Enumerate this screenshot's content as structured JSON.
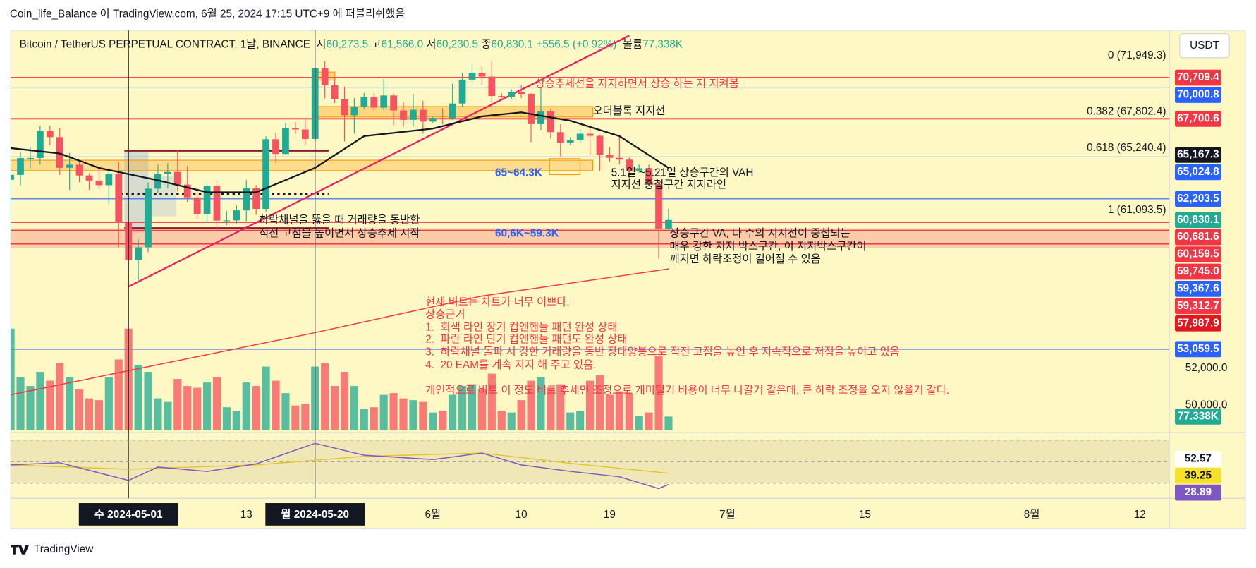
{
  "publisher": "Coin_life_Balance 이 TradingView.com, 6월 25, 2024 17:15 UTC+9 에 퍼블리쉬했음",
  "footer": "TradingView",
  "currency": "USDT",
  "chart_data": {
    "type": "candlestick",
    "title": "Bitcoin / TetherUS PERPETUAL CONTRACT, 1날, BINANCE",
    "legend_fields": [
      {
        "prefix": "시",
        "value": 60273.5,
        "label": "60,273.5"
      },
      {
        "prefix": "고",
        "value": 61566.0,
        "label": "61,566.0"
      },
      {
        "prefix": "저",
        "value": 60230.5,
        "label": "60,230.5"
      },
      {
        "prefix": "종",
        "value": 60830.1,
        "label": "60,830.1"
      }
    ],
    "change": {
      "value": 556.5,
      "label": "+556.5"
    },
    "change_pct": {
      "value": 0.92,
      "label": "(+0.92%)"
    },
    "volume_field": {
      "prefix": "볼륨",
      "value": 77338,
      "label": "77.338K"
    },
    "log_scale": true,
    "grid": false,
    "up_color": "#22ab94",
    "down_color": "#f7525f",
    "xlim": [
      "2024-04-19",
      "2024-08-15"
    ],
    "xticks": [
      {
        "value": "2024-05-01",
        "label": "수 2024-05-01"
      },
      {
        "value": "2024-05-13",
        "label": "13"
      },
      {
        "value": "2024-05-20",
        "label": "월 2024-05-20"
      },
      {
        "value": "2024-06-01",
        "label": "6월"
      },
      {
        "value": "2024-06-10",
        "label": "10"
      },
      {
        "value": "2024-06-19",
        "label": "19"
      },
      {
        "value": "2024-07-01",
        "label": "7월"
      },
      {
        "value": "2024-07-15",
        "label": "15"
      },
      {
        "value": "2024-08-01",
        "label": "8월"
      },
      {
        "value": "2024-08-12",
        "label": "12"
      }
    ],
    "markers": [
      "2024-05-01",
      "2024-05-20"
    ],
    "ylim": [
      48580,
      74330
    ],
    "yticks": [
      {
        "value": 52000,
        "label": "52,000.0"
      },
      {
        "value": 50000,
        "label": "50,000.0"
      }
    ],
    "x": [
      "2024-04-19",
      "2024-04-20",
      "2024-04-21",
      "2024-04-22",
      "2024-04-23",
      "2024-04-24",
      "2024-04-25",
      "2024-04-26",
      "2024-04-27",
      "2024-04-28",
      "2024-04-29",
      "2024-04-30",
      "2024-05-01",
      "2024-05-02",
      "2024-05-03",
      "2024-05-04",
      "2024-05-05",
      "2024-05-06",
      "2024-05-07",
      "2024-05-08",
      "2024-05-09",
      "2024-05-10",
      "2024-05-11",
      "2024-05-12",
      "2024-05-13",
      "2024-05-14",
      "2024-05-15",
      "2024-05-16",
      "2024-05-17",
      "2024-05-18",
      "2024-05-19",
      "2024-05-20",
      "2024-05-21",
      "2024-05-22",
      "2024-05-23",
      "2024-05-24",
      "2024-05-25",
      "2024-05-26",
      "2024-05-27",
      "2024-05-28",
      "2024-05-29",
      "2024-05-30",
      "2024-05-31",
      "2024-06-01",
      "2024-06-02",
      "2024-06-03",
      "2024-06-04",
      "2024-06-05",
      "2024-06-06",
      "2024-06-07",
      "2024-06-08",
      "2024-06-09",
      "2024-06-10",
      "2024-06-11",
      "2024-06-12",
      "2024-06-13",
      "2024-06-14",
      "2024-06-15",
      "2024-06-16",
      "2024-06-17",
      "2024-06-18",
      "2024-06-19",
      "2024-06-20",
      "2024-06-21",
      "2024-06-22",
      "2024-06-23",
      "2024-06-24",
      "2024-06-25"
    ],
    "open": [
      63470,
      63800,
      64940,
      64950,
      66830,
      66400,
      64280,
      64490,
      63760,
      63420,
      63110,
      63840,
      60650,
      58300,
      59100,
      62880,
      63890,
      64000,
      63150,
      62300,
      61190,
      63070,
      60790,
      60800,
      61450,
      62900,
      61550,
      66250,
      65230,
      67050,
      66940,
      66270,
      71450,
      70140,
      69120,
      67950,
      68540,
      69290,
      68500,
      69390,
      68300,
      67620,
      68350,
      67500,
      67760,
      67750,
      68800,
      70560,
      71080,
      70790,
      69350,
      69300,
      69650,
      69510,
      67320,
      68240,
      66750,
      66010,
      66190,
      66640,
      66490,
      65150,
      64960,
      64840,
      64090,
      64250,
      63180,
      60273.5
    ],
    "high": [
      65450,
      65400,
      65700,
      67200,
      67200,
      67050,
      65300,
      64800,
      63900,
      64300,
      64200,
      64700,
      60800,
      59600,
      63300,
      64500,
      64600,
      65500,
      64400,
      62950,
      63400,
      63450,
      61400,
      61800,
      63450,
      63100,
      66450,
      66700,
      67400,
      67450,
      67700,
      71500,
      71950,
      70650,
      70050,
      69200,
      69580,
      69550,
      70600,
      69550,
      68900,
      69500,
      69000,
      67850,
      68450,
      70250,
      71050,
      71750,
      71600,
      71950,
      69550,
      69850,
      70150,
      69550,
      69950,
      68400,
      67300,
      66400,
      66950,
      67250,
      66550,
      65700,
      66450,
      65000,
      64500,
      64500,
      63350,
      61566.0
    ],
    "low": [
      59600,
      63100,
      64250,
      64500,
      65850,
      63800,
      62800,
      63300,
      62800,
      62850,
      61800,
      59100,
      56550,
      56900,
      58800,
      62600,
      62900,
      62700,
      62000,
      60900,
      60650,
      60200,
      60500,
      60600,
      60750,
      61150,
      61350,
      64600,
      65150,
      66620,
      65850,
      66050,
      69160,
      68830,
      66100,
      66650,
      68420,
      68250,
      68300,
      67250,
      67130,
      67150,
      66650,
      67400,
      67300,
      67600,
      68550,
      70400,
      70150,
      68500,
      69200,
      69150,
      69200,
      66050,
      66900,
      66300,
      65050,
      65850,
      65950,
      65100,
      64050,
      64700,
      64500,
      63400,
      63950,
      63150,
      58400,
      60230.5
    ],
    "close": [
      63800,
      64940,
      64950,
      66830,
      66400,
      64280,
      64490,
      63760,
      63420,
      63110,
      63840,
      60650,
      58300,
      59100,
      62880,
      63890,
      64000,
      63150,
      62300,
      61190,
      63070,
      60790,
      60800,
      61450,
      62900,
      61550,
      66250,
      65230,
      67050,
      66940,
      66270,
      71450,
      70140,
      69120,
      67950,
      68540,
      69290,
      68500,
      69390,
      68300,
      67620,
      68350,
      67500,
      67760,
      67750,
      68800,
      70560,
      71080,
      70790,
      69350,
      69300,
      69650,
      69510,
      67320,
      68240,
      66750,
      66010,
      66190,
      66640,
      66490,
      65150,
      64960,
      64840,
      64090,
      64250,
      63180,
      60270,
      60830.1
    ],
    "volume": [
      575000,
      300000,
      250000,
      330000,
      280000,
      380000,
      300000,
      230000,
      180000,
      170000,
      300000,
      400000,
      575000,
      370000,
      330000,
      180000,
      160000,
      290000,
      250000,
      240000,
      270000,
      300000,
      130000,
      110000,
      270000,
      250000,
      360000,
      280000,
      210000,
      140000,
      150000,
      360000,
      380000,
      250000,
      330000,
      250000,
      120000,
      130000,
      200000,
      210000,
      180000,
      170000,
      160000,
      100000,
      110000,
      200000,
      250000,
      260000,
      230000,
      320000,
      110000,
      100000,
      170000,
      280000,
      300000,
      240000,
      260000,
      100000,
      110000,
      280000,
      310000,
      200000,
      220000,
      210000,
      80000,
      100000,
      420000,
      77338
    ],
    "vlim": [
      0,
      680000
    ],
    "volume_tag": {
      "value": 77338,
      "label": "77.338K",
      "color": "#22ab94"
    },
    "ema": {
      "color": "#131722",
      "x": [
        "2024-04-19",
        "2024-04-24",
        "2024-04-28",
        "2024-05-04",
        "2024-05-09",
        "2024-05-14",
        "2024-05-20",
        "2024-05-25",
        "2024-06-01",
        "2024-06-06",
        "2024-06-10",
        "2024-06-15",
        "2024-06-20",
        "2024-06-25"
      ],
      "values": [
        65630,
        65260,
        64270,
        63440,
        62640,
        62640,
        64270,
        66470,
        67000,
        67870,
        68160,
        67560,
        66470,
        64270
      ]
    },
    "ma_long": {
      "color": "#f23645",
      "x": [
        "2024-04-19",
        "2024-05-20",
        "2024-06-06",
        "2024-06-25"
      ],
      "values": [
        50560,
        54000,
        56130,
        57760
      ]
    },
    "trendline": {
      "color": "#e91e63",
      "x": [
        "2024-05-01",
        "2024-06-21"
      ],
      "values": [
        56690,
        73930
      ]
    },
    "price_tags": [
      {
        "value": 70709.4,
        "label": "70,709.4",
        "color": "#f23645",
        "line": true
      },
      {
        "value": 70000.8,
        "label": "70,000.8",
        "color": "#2962ff",
        "line": true
      },
      {
        "value": 67700.6,
        "label": "67,700.6",
        "color": "#f23645",
        "line": true
      },
      {
        "value": 65167.3,
        "label": "65,167.3",
        "color": "#131722",
        "line": false
      },
      {
        "value": 65024.8,
        "label": "65,024.8",
        "color": "#2962ff",
        "line": true
      },
      {
        "value": 62203.5,
        "label": "62,203.5",
        "color": "#2962ff",
        "line": true
      },
      {
        "value": 60830.1,
        "label": "60,830.1",
        "color": "#22ab94",
        "line": false
      },
      {
        "value": 60681.6,
        "label": "60,681.6",
        "color": "#f23645",
        "line": true
      },
      {
        "value": 60159.5,
        "label": "60,159.5",
        "color": "#f23645",
        "line": true
      },
      {
        "value": 59745.0,
        "label": "59,745.0",
        "color": "#f23645",
        "line": false
      },
      {
        "value": 59367.6,
        "label": "59,367.6",
        "color": "#2962ff",
        "line": false
      },
      {
        "value": 59312.7,
        "label": "59,312.7",
        "color": "#f23645",
        "line": true
      },
      {
        "value": 57987.9,
        "label": "57,987.9",
        "color": "#e0171f",
        "line": false
      },
      {
        "value": 53059.5,
        "label": "53,059.5",
        "color": "#2962ff",
        "line": true
      }
    ],
    "fib_levels": [
      {
        "value": 71949.3,
        "label": "0 (71,949.3)"
      },
      {
        "value": 67802.4,
        "label": "0.382 (67,802.4)"
      },
      {
        "value": 65240.4,
        "label": "0.618 (65,240.4)"
      },
      {
        "value": 61093.5,
        "label": "1 (61,093.5)"
      }
    ],
    "annotations": [
      {
        "text": "상승추세선을 지지하면서 상승 하는 지 지켜봄",
        "color": "#f23645"
      },
      {
        "text": "오더블록 지지선",
        "color": "#131722"
      },
      {
        "text": "65~64.3K",
        "color": "#2962ff"
      },
      {
        "text": "5.1일 ~5.21일 상승구간의 VAH",
        "color": "#131722"
      },
      {
        "text": "지지선 중첩구간 지지라인",
        "color": "#131722"
      },
      {
        "text": "하락채널을 뚫을 때 거래량을 동반한",
        "color": "#131722"
      },
      {
        "text": "직전 고점을 높이면서 상승추세 시작",
        "color": "#131722"
      },
      {
        "text": "60,6K~59.3K",
        "color": "#2962ff"
      },
      {
        "text": "상승구간 VA, 다 수의 지지선이 중첩되는",
        "color": "#131722"
      },
      {
        "text": "매우 강한 지지 박스구간, 이 지지박스구간이",
        "color": "#131722"
      },
      {
        "text": "깨지면 하락조정이 길어질 수 있음",
        "color": "#131722"
      },
      {
        "text": "현재 비트는 차트가 너무 이쁘다.",
        "color": "#f23645"
      },
      {
        "text": "상승근거",
        "color": "#f23645"
      },
      {
        "text": "1.  회색 라인 장기 컵앤핸들 패턴 완성 상태",
        "color": "#f23645"
      },
      {
        "text": "2.  파란 라인 단기 컵앤핸들 패턴도 완성 상태",
        "color": "#f23645"
      },
      {
        "text": "3.  하락채널 돌파 시 강한 거래량을 동반 장대양봉으로 직전 고점을 높인 후 지속적으로 저점을 높이고 있음",
        "color": "#f23645"
      },
      {
        "text": "4.  20 EAM를 계속 지지 해 주고 있음.",
        "color": "#f23645"
      },
      {
        "text": "개인적으로 비트 이 정도 비트 추세면 조정으로 개미털기 비용이 너무 나갈거 같은데, 큰 하락 조정을 오지 않을거 같다.",
        "color": "#f23645"
      }
    ],
    "rsi": {
      "ylim": [
        16,
        77
      ],
      "yticks": [
        70,
        50,
        30
      ],
      "series": [
        {
          "color": "#7e57c2",
          "x": [
            "2024-04-19",
            "2024-04-24",
            "2024-05-01",
            "2024-05-04",
            "2024-05-09",
            "2024-05-14",
            "2024-05-20",
            "2024-05-25",
            "2024-06-01",
            "2024-06-06",
            "2024-06-10",
            "2024-06-15",
            "2024-06-20",
            "2024-06-24",
            "2024-06-25"
          ],
          "values": [
            47,
            49,
            32.6,
            45,
            41,
            48,
            67,
            56,
            52,
            58,
            47,
            41,
            36,
            25,
            28.89
          ]
        },
        {
          "color": "#e6c32b",
          "x": [
            "2024-04-19",
            "2024-05-01",
            "2024-05-14",
            "2024-05-25",
            "2024-06-06",
            "2024-06-15",
            "2024-06-25"
          ],
          "values": [
            47,
            43,
            47,
            55,
            58,
            48.5,
            39.25
          ]
        }
      ],
      "tags": [
        {
          "value": 52.57,
          "label": "52.57",
          "color": "#ffffff"
        },
        {
          "value": 39.25,
          "label": "39.25",
          "color": "#f5e12b"
        },
        {
          "value": 28.89,
          "label": "28.89",
          "color": "#7e57c2"
        }
      ]
    }
  }
}
